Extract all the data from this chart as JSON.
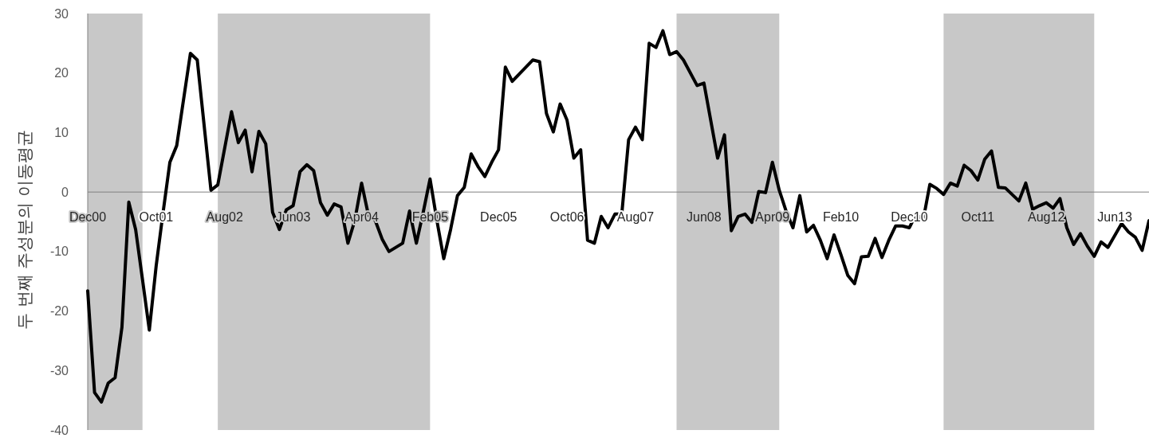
{
  "chart_data": {
    "type": "line",
    "ylabel": "두 번째 주성분의 이동평균",
    "xlim": [
      "2000-12",
      "2013-11"
    ],
    "ylim": [
      -40,
      30
    ],
    "yticks": [
      -40,
      -30,
      -20,
      -10,
      0,
      10,
      20,
      30
    ],
    "xticks": [
      {
        "value": "2000-12",
        "label": "Dec00"
      },
      {
        "value": "2001-10",
        "label": "Oct01"
      },
      {
        "value": "2002-08",
        "label": "Aug02"
      },
      {
        "value": "2003-06",
        "label": "Jun03"
      },
      {
        "value": "2004-04",
        "label": "Apr04"
      },
      {
        "value": "2005-02",
        "label": "Feb05"
      },
      {
        "value": "2005-12",
        "label": "Dec05"
      },
      {
        "value": "2006-10",
        "label": "Oct06"
      },
      {
        "value": "2007-08",
        "label": "Aug07"
      },
      {
        "value": "2008-06",
        "label": "Jun08"
      },
      {
        "value": "2009-04",
        "label": "Apr09"
      },
      {
        "value": "2010-02",
        "label": "Feb10"
      },
      {
        "value": "2010-12",
        "label": "Dec10"
      },
      {
        "value": "2011-10",
        "label": "Oct11"
      },
      {
        "value": "2012-08",
        "label": "Aug12"
      },
      {
        "value": "2013-06",
        "label": "Jun13"
      }
    ],
    "bands": [
      {
        "axis": "x",
        "from": "2000-12",
        "to": "2001-08",
        "color": "#c8c8c8"
      },
      {
        "axis": "x",
        "from": "2002-07",
        "to": "2005-02",
        "color": "#c8c8c8"
      },
      {
        "axis": "x",
        "from": "2008-02",
        "to": "2009-05",
        "color": "#c8c8c8"
      },
      {
        "axis": "x",
        "from": "2011-05",
        "to": "2013-03",
        "color": "#c8c8c8"
      }
    ],
    "series": [
      {
        "color": "#000000",
        "x": [
          "2000-12",
          "2001-01",
          "2001-02",
          "2001-03",
          "2001-04",
          "2001-05",
          "2001-06",
          "2001-07",
          "2001-08",
          "2001-09",
          "2001-10",
          "2001-11",
          "2001-12",
          "2002-01",
          "2002-03",
          "2002-04",
          "2002-06",
          "2002-07",
          "2002-09",
          "2002-10",
          "2002-11",
          "2002-12",
          "2003-01",
          "2003-02",
          "2003-03",
          "2003-04",
          "2003-05",
          "2003-06",
          "2003-07",
          "2003-08",
          "2003-09",
          "2003-10",
          "2003-11",
          "2003-12",
          "2004-01",
          "2004-02",
          "2004-03",
          "2004-04",
          "2004-05",
          "2004-06",
          "2004-07",
          "2004-08",
          "2004-10",
          "2004-11",
          "2004-12",
          "2005-01",
          "2005-02",
          "2005-03",
          "2005-04",
          "2005-05",
          "2005-06",
          "2005-07",
          "2005-08",
          "2005-09",
          "2005-10",
          "2005-11",
          "2005-12",
          "2006-01",
          "2006-02",
          "2006-05",
          "2006-06",
          "2006-07",
          "2006-08",
          "2006-09",
          "2006-10",
          "2006-11",
          "2006-12",
          "2007-01",
          "2007-02",
          "2007-03",
          "2007-04",
          "2007-05",
          "2007-06",
          "2007-07",
          "2007-08",
          "2007-09",
          "2007-10",
          "2007-11",
          "2007-12",
          "2008-01",
          "2008-02",
          "2008-03",
          "2008-05",
          "2008-06",
          "2008-08",
          "2008-09",
          "2008-10",
          "2008-11",
          "2008-12",
          "2009-01",
          "2009-02",
          "2009-03",
          "2009-04",
          "2009-05",
          "2009-06",
          "2009-07",
          "2009-08",
          "2009-09",
          "2009-10",
          "2009-11",
          "2009-12",
          "2010-01",
          "2010-02",
          "2010-03",
          "2010-04",
          "2010-05",
          "2010-06",
          "2010-07",
          "2010-08",
          "2010-09",
          "2010-10",
          "2010-11",
          "2010-12",
          "2011-01",
          "2011-02",
          "2011-03",
          "2011-04",
          "2011-05",
          "2011-06",
          "2011-07",
          "2011-08",
          "2011-09",
          "2011-10",
          "2011-11",
          "2011-12",
          "2012-01",
          "2012-02",
          "2012-03",
          "2012-04",
          "2012-05",
          "2012-06",
          "2012-07",
          "2012-08",
          "2012-09",
          "2012-10",
          "2012-11",
          "2012-12",
          "2013-01",
          "2013-02",
          "2013-03",
          "2013-04",
          "2013-05",
          "2013-07",
          "2013-08",
          "2013-09",
          "2013-10",
          "2013-11"
        ],
        "values": [
          -16.6,
          -33.7,
          -35.3,
          -32.1,
          -31.2,
          -22.7,
          -1.7,
          -6.3,
          -14.7,
          -23.2,
          -12.4,
          -3.5,
          5.0,
          7.8,
          23.3,
          22.2,
          0.3,
          1.2,
          13.5,
          8.3,
          10.4,
          3.4,
          10.2,
          8.1,
          -3.4,
          -6.3,
          -3.0,
          -2.3,
          3.4,
          4.6,
          3.6,
          -1.8,
          -3.9,
          -2.0,
          -2.5,
          -8.6,
          -4.8,
          1.5,
          -3.9,
          -4.8,
          -7.9,
          -10.0,
          -8.6,
          -3.2,
          -8.6,
          -3.4,
          2.2,
          -4.8,
          -11.2,
          -6.3,
          -0.6,
          0.8,
          6.4,
          4.3,
          2.6,
          5.0,
          7.1,
          21.0,
          18.6,
          22.2,
          21.9,
          13.2,
          10.1,
          14.8,
          12.1,
          5.7,
          7.1,
          -8.1,
          -8.6,
          -4.1,
          -6.0,
          -3.7,
          -3.7,
          8.8,
          10.9,
          8.8,
          25.0,
          24.3,
          27.1,
          23.1,
          23.6,
          22.2,
          17.9,
          18.3,
          5.7,
          9.6,
          -6.5,
          -4.1,
          -3.7,
          -5.1,
          0.1,
          -0.1,
          5.0,
          0.3,
          -3.2,
          -6.0,
          -0.6,
          -6.7,
          -5.6,
          -8.1,
          -11.2,
          -7.2,
          -10.5,
          -14.0,
          -15.4,
          -10.9,
          -10.8,
          -7.8,
          -11.0,
          -8.1,
          -5.7,
          -5.7,
          -6.0,
          -3.7,
          -4.8,
          1.3,
          0.6,
          -0.4,
          1.5,
          1.0,
          4.5,
          3.6,
          2.0,
          5.5,
          6.9,
          0.8,
          0.7,
          -0.4,
          -1.5,
          1.5,
          -2.9,
          -2.3,
          -1.8,
          -2.7,
          -1.1,
          -6.0,
          -8.8,
          -7.0,
          -9.1,
          -10.8,
          -8.4,
          -9.3,
          -5.3,
          -6.7,
          -7.6,
          -9.8,
          -4.8
        ]
      }
    ]
  }
}
